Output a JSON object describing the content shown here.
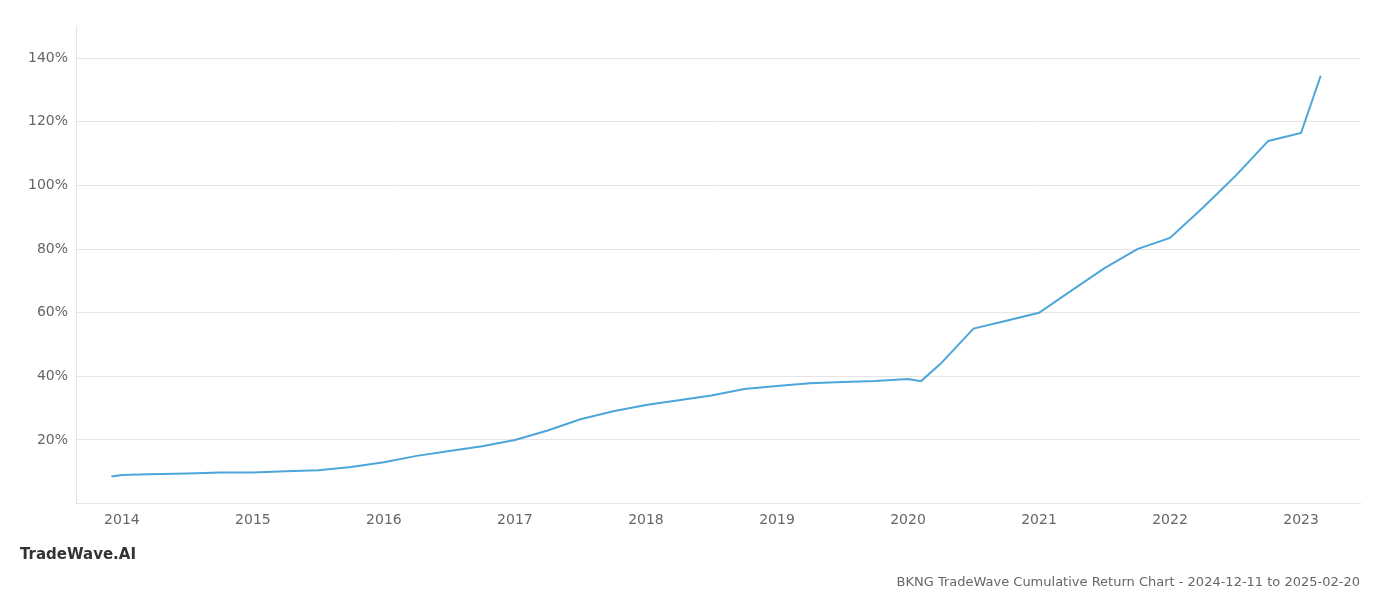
{
  "chart_data": {
    "type": "line",
    "title": "BKNG TradeWave Cumulative Return Chart - 2024-12-11 to 2025-02-20",
    "annotations": [
      "TradeWave.AI"
    ],
    "color": "#4da6d8",
    "x": [
      2013.92,
      2014.0,
      2014.2,
      2014.5,
      2014.75,
      2015.0,
      2015.15,
      2015.25,
      2015.5,
      2015.75,
      2016.0,
      2016.25,
      2016.5,
      2016.75,
      2017.0,
      2017.25,
      2017.5,
      2017.75,
      2018.0,
      2018.25,
      2018.5,
      2018.75,
      2019.0,
      2019.25,
      2019.5,
      2019.75,
      2020.0,
      2020.1,
      2020.25,
      2020.5,
      2020.75,
      2021.0,
      2021.25,
      2021.5,
      2021.75,
      2022.0,
      2022.25,
      2022.5,
      2022.75,
      2023.0,
      2023.15
    ],
    "values": [
      8.5,
      9.0,
      9.2,
      9.5,
      9.8,
      9.8,
      10.0,
      10.2,
      10.5,
      11.5,
      13.0,
      15.0,
      16.5,
      18.0,
      20.0,
      23.0,
      26.5,
      29.0,
      31.0,
      32.5,
      34.0,
      36.0,
      37.0,
      37.8,
      38.2,
      38.5,
      39.2,
      38.5,
      44.0,
      55.0,
      57.5,
      60.0,
      67.0,
      74.0,
      80.0,
      83.5,
      93.0,
      103.0,
      114.0,
      116.5,
      134.5
    ],
    "xlim": [
      2013.65,
      2023.45
    ],
    "ylim": [
      0,
      150
    ],
    "xticks": [
      2014,
      2015,
      2016,
      2017,
      2018,
      2019,
      2020,
      2021,
      2022,
      2023
    ],
    "yticks": [
      {
        "value": 20,
        "label": "20%"
      },
      {
        "value": 40,
        "label": "40%"
      },
      {
        "value": 60,
        "label": "60%"
      },
      {
        "value": 80,
        "label": "80%"
      },
      {
        "value": 100,
        "label": "100%"
      },
      {
        "value": 120,
        "label": "120%"
      },
      {
        "value": 140,
        "label": "140%"
      }
    ],
    "grid": "y"
  }
}
